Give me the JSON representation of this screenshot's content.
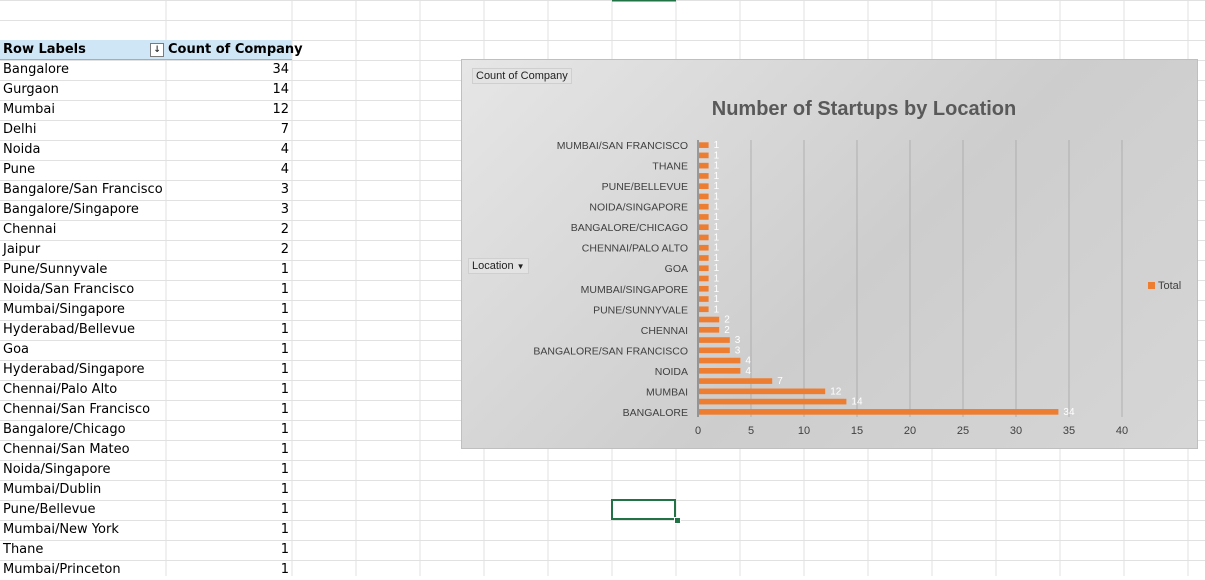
{
  "pivot": {
    "header_label": "Row Labels",
    "header_count": "Count of Company",
    "filter_icon": "sort-filter-icon",
    "rows": [
      {
        "label": "Bangalore",
        "count": "34"
      },
      {
        "label": "Gurgaon",
        "count": "14"
      },
      {
        "label": "Mumbai",
        "count": "12"
      },
      {
        "label": "Delhi",
        "count": "7"
      },
      {
        "label": "Noida",
        "count": "4"
      },
      {
        "label": "Pune",
        "count": "4"
      },
      {
        "label": "Bangalore/San Francisco",
        "count": "3"
      },
      {
        "label": "Bangalore/Singapore",
        "count": "3"
      },
      {
        "label": "Chennai",
        "count": "2"
      },
      {
        "label": "Jaipur",
        "count": "2"
      },
      {
        "label": "Pune/Sunnyvale",
        "count": "1"
      },
      {
        "label": "Noida/San Francisco",
        "count": "1"
      },
      {
        "label": "Mumbai/Singapore",
        "count": "1"
      },
      {
        "label": "Hyderabad/Bellevue",
        "count": "1"
      },
      {
        "label": "Goa",
        "count": "1"
      },
      {
        "label": "Hyderabad/Singapore",
        "count": "1"
      },
      {
        "label": "Chennai/Palo Alto",
        "count": "1"
      },
      {
        "label": "Chennai/San Francisco",
        "count": "1"
      },
      {
        "label": "Bangalore/Chicago",
        "count": "1"
      },
      {
        "label": "Chennai/San Mateo",
        "count": "1"
      },
      {
        "label": "Noida/Singapore",
        "count": "1"
      },
      {
        "label": "Mumbai/Dublin",
        "count": "1"
      },
      {
        "label": "Pune/Bellevue",
        "count": "1"
      },
      {
        "label": "Mumbai/New York",
        "count": "1"
      },
      {
        "label": "Thane",
        "count": "1"
      },
      {
        "label": "Mumbai/Princeton",
        "count": "1"
      }
    ]
  },
  "chart": {
    "value_chip": "Count of Company",
    "axis_chip": "Location",
    "axis_chip_icon": "dropdown-arrow-icon",
    "legend_label": "Total",
    "colors": {
      "bar": "#ed7d31",
      "grid": "#a6a6a6",
      "axis_text": "#404040",
      "title": "#595959"
    }
  },
  "chart_data": {
    "type": "bar",
    "orientation": "horizontal",
    "title": "Number of Startups by Location",
    "xlabel": "",
    "ylabel": "",
    "xlim": [
      0,
      40
    ],
    "xticks": [
      0,
      5,
      10,
      15,
      20,
      25,
      30,
      35,
      40
    ],
    "grid": true,
    "legend_position": "right",
    "categories": [
      "BANGALORE",
      "GURGAON",
      "MUMBAI",
      "DELHI",
      "NOIDA",
      "PUNE",
      "BANGALORE/SAN FRANCISCO",
      "BANGALORE/SINGAPORE",
      "CHENNAI",
      "JAIPUR",
      "PUNE/SUNNYVALE",
      "NOIDA/SAN FRANCISCO",
      "MUMBAI/SINGAPORE",
      "HYDERABAD/BELLEVUE",
      "GOA",
      "HYDERABAD/SINGAPORE",
      "CHENNAI/PALO ALTO",
      "CHENNAI/SAN FRANCISCO",
      "BANGALORE/CHICAGO",
      "CHENNAI/SAN MATEO",
      "NOIDA/SINGAPORE",
      "MUMBAI/DUBLIN",
      "PUNE/BELLEVUE",
      "MUMBAI/NEW YORK",
      "THANE",
      "MUMBAI/PRINCETON",
      "MUMBAI/SAN FRANCISCO"
    ],
    "shown_category_labels": [
      "MUMBAI/SAN FRANCISCO",
      "THANE",
      "PUNE/BELLEVUE",
      "NOIDA/SINGAPORE",
      "BANGALORE/CHICAGO",
      "CHENNAI/PALO ALTO",
      "GOA",
      "MUMBAI/SINGAPORE",
      "PUNE/SUNNYVALE",
      "CHENNAI",
      "BANGALORE/SAN FRANCISCO",
      "NOIDA",
      "MUMBAI",
      "BANGALORE"
    ],
    "series": [
      {
        "name": "Total",
        "values": [
          34,
          14,
          12,
          7,
          4,
          4,
          3,
          3,
          2,
          2,
          1,
          1,
          1,
          1,
          1,
          1,
          1,
          1,
          1,
          1,
          1,
          1,
          1,
          1,
          1,
          1,
          1
        ]
      }
    ]
  }
}
